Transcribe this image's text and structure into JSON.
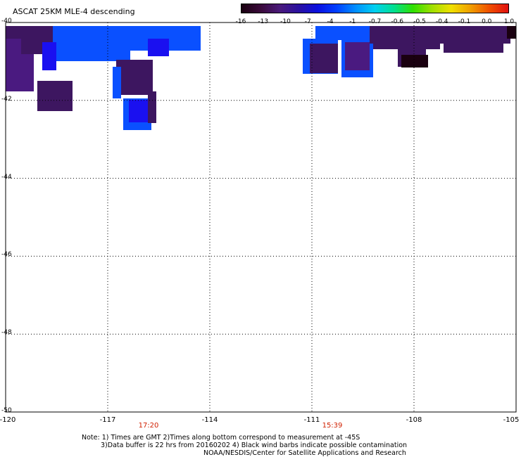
{
  "title": "ASCAT 25KM MLE-4 descending",
  "colorbar": {
    "labels": [
      "-16",
      "-13",
      "-10",
      "-7",
      "-4",
      "-1",
      "-0.7",
      "-0.6",
      "-0.5",
      "-0.4",
      "-0.1",
      "0.0",
      "1.0"
    ],
    "colors": [
      "#1a0010",
      "#3a0a3a",
      "#4a1a7a",
      "#2a10a0",
      "#0a10e0",
      "#0040ff",
      "#0090ff",
      "#00d0f0",
      "#00e090",
      "#30e000",
      "#a0e000",
      "#f0e000",
      "#f0a000",
      "#f05000",
      "#e01010"
    ]
  },
  "map": {
    "lat_labels": [
      "-40",
      "-42",
      "-44",
      "-46",
      "-48",
      "-50"
    ],
    "lon_labels": [
      "-120",
      "-117",
      "-114",
      "-111",
      "-108",
      "-105"
    ],
    "time_labels": [
      {
        "text": "17:20",
        "lon": -115.8
      },
      {
        "text": "15:39",
        "lon": -110.4
      }
    ],
    "swath_colors": {
      "dark_purple": "#3d1660",
      "purple": "#4a1a80",
      "blue": "#1a10f0",
      "light_blue": "#0a50ff",
      "black": "#1a0010"
    }
  },
  "notes": [
    "Note: 1) Times are GMT 2)Times along bottom correspond to measurement at -45S",
    "3)Data buffer is 22 hrs from 20160202 4) Black wind barbs indicate possible contamination",
    "NOAA/NESDIS/Center for Satellite Applications and Research"
  ]
}
